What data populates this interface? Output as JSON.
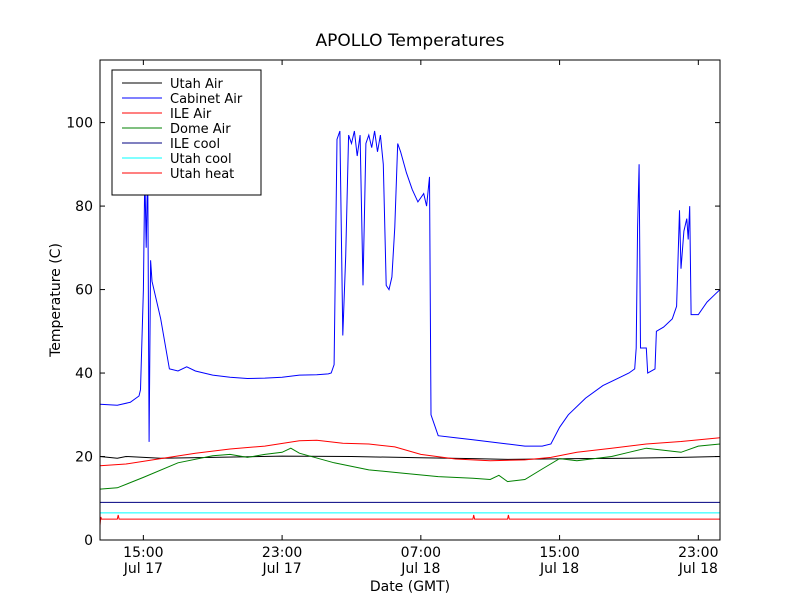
{
  "chart_data": {
    "type": "line",
    "title": "APOLLO Temperatures",
    "xlabel": "Date (GMT)",
    "ylabel": "Temperature (C)",
    "xlim": [
      "Jul 17 12:30",
      "Jul 19 00:15"
    ],
    "ylim": [
      0,
      115
    ],
    "yticks": [
      0,
      20,
      40,
      60,
      80,
      100
    ],
    "xticks": [
      {
        "t": "Jul 17 15:00",
        "line1": "15:00",
        "line2": "Jul 17"
      },
      {
        "t": "Jul 17 23:00",
        "line1": "23:00",
        "line2": "Jul 17"
      },
      {
        "t": "Jul 18 07:00",
        "line1": "07:00",
        "line2": "Jul 18"
      },
      {
        "t": "Jul 18 15:00",
        "line1": "15:00",
        "line2": "Jul 18"
      },
      {
        "t": "Jul 18 23:00",
        "line1": "23:00",
        "line2": "Jul 18"
      }
    ],
    "grid": false,
    "legend": "top-left",
    "series": [
      {
        "name": "Utah Air",
        "color": "#000000",
        "points": [
          [
            "Jul 17 12:30",
            20.0
          ],
          [
            "Jul 17 13:30",
            19.6
          ],
          [
            "Jul 17 14:00",
            20.0
          ],
          [
            "Jul 17 16:00",
            19.6
          ],
          [
            "Jul 17 19:00",
            19.8
          ],
          [
            "Jul 17 23:00",
            20.1
          ],
          [
            "Jul 18 03:00",
            20.0
          ],
          [
            "Jul 18 07:00",
            19.7
          ],
          [
            "Jul 18 10:00",
            19.5
          ],
          [
            "Jul 18 12:00",
            19.3
          ],
          [
            "Jul 18 14:00",
            19.4
          ],
          [
            "Jul 18 16:00",
            19.5
          ],
          [
            "Jul 18 19:00",
            19.6
          ],
          [
            "Jul 18 22:00",
            19.8
          ],
          [
            "Jul 19 00:15",
            20.0
          ]
        ]
      },
      {
        "name": "Cabinet Air",
        "color": "#0000ff",
        "points": [
          [
            "Jul 17 12:30",
            32.5
          ],
          [
            "Jul 17 13:30",
            32.3
          ],
          [
            "Jul 17 14:15",
            33.0
          ],
          [
            "Jul 17 14:45",
            34.5
          ],
          [
            "Jul 17 14:50",
            36
          ],
          [
            "Jul 17 15:00",
            60
          ],
          [
            "Jul 17 15:05",
            88
          ],
          [
            "Jul 17 15:10",
            70
          ],
          [
            "Jul 17 15:15",
            90
          ],
          [
            "Jul 17 15:20",
            23.5
          ],
          [
            "Jul 17 15:25",
            67
          ],
          [
            "Jul 17 15:30",
            62
          ],
          [
            "Jul 17 16:00",
            53
          ],
          [
            "Jul 17 16:30",
            41
          ],
          [
            "Jul 17 17:00",
            40.5
          ],
          [
            "Jul 17 17:30",
            41.5
          ],
          [
            "Jul 17 18:00",
            40.5
          ],
          [
            "Jul 17 19:00",
            39.5
          ],
          [
            "Jul 17 20:00",
            39.0
          ],
          [
            "Jul 17 21:00",
            38.7
          ],
          [
            "Jul 17 22:00",
            38.8
          ],
          [
            "Jul 17 23:00",
            39.0
          ],
          [
            "Jul 18 00:00",
            39.5
          ],
          [
            "Jul 18 01:00",
            39.6
          ],
          [
            "Jul 18 01:40",
            39.8
          ],
          [
            "Jul 18 01:50",
            40
          ],
          [
            "Jul 18 02:00",
            42
          ],
          [
            "Jul 18 02:10",
            96
          ],
          [
            "Jul 18 02:20",
            98
          ],
          [
            "Jul 18 02:30",
            49
          ],
          [
            "Jul 18 02:40",
            68
          ],
          [
            "Jul 18 02:50",
            97
          ],
          [
            "Jul 18 03:00",
            95
          ],
          [
            "Jul 18 03:10",
            98
          ],
          [
            "Jul 18 03:20",
            92
          ],
          [
            "Jul 18 03:30",
            97
          ],
          [
            "Jul 18 03:40",
            61
          ],
          [
            "Jul 18 03:50",
            95
          ],
          [
            "Jul 18 04:00",
            97
          ],
          [
            "Jul 18 04:10",
            94
          ],
          [
            "Jul 18 04:20",
            98
          ],
          [
            "Jul 18 04:30",
            93
          ],
          [
            "Jul 18 04:40",
            97
          ],
          [
            "Jul 18 04:50",
            90
          ],
          [
            "Jul 18 05:00",
            61
          ],
          [
            "Jul 18 05:10",
            60
          ],
          [
            "Jul 18 05:20",
            63
          ],
          [
            "Jul 18 05:30",
            75
          ],
          [
            "Jul 18 05:40",
            95
          ],
          [
            "Jul 18 05:50",
            93
          ],
          [
            "Jul 18 06:10",
            88
          ],
          [
            "Jul 18 06:30",
            84
          ],
          [
            "Jul 18 06:50",
            81
          ],
          [
            "Jul 18 07:10",
            83
          ],
          [
            "Jul 18 07:20",
            80
          ],
          [
            "Jul 18 07:30",
            87
          ],
          [
            "Jul 18 07:35",
            30
          ],
          [
            "Jul 18 08:00",
            25
          ],
          [
            "Jul 18 09:00",
            24.5
          ],
          [
            "Jul 18 10:00",
            24
          ],
          [
            "Jul 18 11:00",
            23.5
          ],
          [
            "Jul 18 12:00",
            23
          ],
          [
            "Jul 18 13:00",
            22.5
          ],
          [
            "Jul 18 14:00",
            22.5
          ],
          [
            "Jul 18 14:30",
            23
          ],
          [
            "Jul 18 15:00",
            27
          ],
          [
            "Jul 18 15:30",
            30
          ],
          [
            "Jul 18 16:30",
            34
          ],
          [
            "Jul 18 17:30",
            37
          ],
          [
            "Jul 18 18:30",
            39
          ],
          [
            "Jul 18 19:00",
            40
          ],
          [
            "Jul 18 19:20",
            41
          ],
          [
            "Jul 18 19:25",
            46
          ],
          [
            "Jul 18 19:30",
            75
          ],
          [
            "Jul 18 19:35",
            90
          ],
          [
            "Jul 18 19:40",
            46
          ],
          [
            "Jul 18 20:00",
            46
          ],
          [
            "Jul 18 20:05",
            40
          ],
          [
            "Jul 18 20:30",
            41
          ],
          [
            "Jul 18 20:35",
            50
          ],
          [
            "Jul 18 21:00",
            51
          ],
          [
            "Jul 18 21:30",
            53
          ],
          [
            "Jul 18 21:45",
            56
          ],
          [
            "Jul 18 21:55",
            79
          ],
          [
            "Jul 18 22:00",
            65
          ],
          [
            "Jul 18 22:10",
            74
          ],
          [
            "Jul 18 22:20",
            77
          ],
          [
            "Jul 18 22:25",
            72
          ],
          [
            "Jul 18 22:30",
            80
          ],
          [
            "Jul 18 22:35",
            54
          ],
          [
            "Jul 18 23:00",
            54
          ],
          [
            "Jul 18 23:30",
            57
          ],
          [
            "Jul 19 00:00",
            59
          ],
          [
            "Jul 19 00:15",
            60
          ]
        ]
      },
      {
        "name": "ILE Air",
        "color": "#ff0000",
        "points": [
          [
            "Jul 17 12:30",
            17.8
          ],
          [
            "Jul 17 14:00",
            18.2
          ],
          [
            "Jul 17 16:00",
            19.5
          ],
          [
            "Jul 17 18:00",
            20.8
          ],
          [
            "Jul 17 20:00",
            21.8
          ],
          [
            "Jul 17 22:00",
            22.5
          ],
          [
            "Jul 18 00:00",
            23.8
          ],
          [
            "Jul 18 01:00",
            23.9
          ],
          [
            "Jul 18 02:30",
            23.2
          ],
          [
            "Jul 18 04:00",
            23.0
          ],
          [
            "Jul 18 05:30",
            22.3
          ],
          [
            "Jul 18 07:00",
            20.5
          ],
          [
            "Jul 18 09:00",
            19.4
          ],
          [
            "Jul 18 11:00",
            19.0
          ],
          [
            "Jul 18 13:00",
            19.2
          ],
          [
            "Jul 18 14:30",
            19.8
          ],
          [
            "Jul 18 16:00",
            21.0
          ],
          [
            "Jul 18 18:00",
            22.0
          ],
          [
            "Jul 18 20:00",
            23.0
          ],
          [
            "Jul 18 22:00",
            23.6
          ],
          [
            "Jul 19 00:15",
            24.5
          ]
        ]
      },
      {
        "name": "Dome Air",
        "color": "#008000",
        "points": [
          [
            "Jul 17 12:30",
            12.2
          ],
          [
            "Jul 17 13:30",
            12.5
          ],
          [
            "Jul 17 15:00",
            15.0
          ],
          [
            "Jul 17 17:00",
            18.5
          ],
          [
            "Jul 17 19:00",
            20.2
          ],
          [
            "Jul 17 20:00",
            20.5
          ],
          [
            "Jul 17 21:00",
            19.8
          ],
          [
            "Jul 17 22:00",
            20.5
          ],
          [
            "Jul 17 23:00",
            21.0
          ],
          [
            "Jul 17 23:30",
            22.0
          ],
          [
            "Jul 18 00:00",
            20.8
          ],
          [
            "Jul 18 02:00",
            18.5
          ],
          [
            "Jul 18 04:00",
            16.8
          ],
          [
            "Jul 18 06:00",
            16.0
          ],
          [
            "Jul 18 08:00",
            15.2
          ],
          [
            "Jul 18 10:00",
            14.8
          ],
          [
            "Jul 18 11:00",
            14.5
          ],
          [
            "Jul 18 11:30",
            15.5
          ],
          [
            "Jul 18 12:00",
            14.0
          ],
          [
            "Jul 18 13:00",
            14.5
          ],
          [
            "Jul 18 14:00",
            17.0
          ],
          [
            "Jul 18 15:00",
            19.5
          ],
          [
            "Jul 18 16:00",
            19.0
          ],
          [
            "Jul 18 18:00",
            20.0
          ],
          [
            "Jul 18 19:00",
            21.0
          ],
          [
            "Jul 18 20:00",
            22.0
          ],
          [
            "Jul 18 21:00",
            21.5
          ],
          [
            "Jul 18 22:00",
            21.0
          ],
          [
            "Jul 18 23:00",
            22.5
          ],
          [
            "Jul 19 00:15",
            23.0
          ]
        ]
      },
      {
        "name": "ILE cool",
        "color": "#000080",
        "points": [
          [
            "Jul 17 12:30",
            9.0
          ],
          [
            "Jul 19 00:15",
            9.0
          ]
        ]
      },
      {
        "name": "Utah cool",
        "color": "#00ffff",
        "points": [
          [
            "Jul 17 12:30",
            6.5
          ],
          [
            "Jul 19 00:15",
            6.5
          ]
        ]
      },
      {
        "name": "Utah heat",
        "color": "#ff0000",
        "points": [
          [
            "Jul 17 12:30",
            3.5
          ],
          [
            "Jul 17 12:32",
            5.2
          ],
          [
            "Jul 17 12:33",
            5.5
          ],
          [
            "Jul 17 12:35",
            5.0
          ],
          [
            "Jul 17 13:30",
            5.0
          ],
          [
            "Jul 17 13:33",
            6.0
          ],
          [
            "Jul 17 13:36",
            5.0
          ],
          [
            "Jul 18 10:00",
            5.0
          ],
          [
            "Jul 18 10:03",
            6.0
          ],
          [
            "Jul 18 10:06",
            5.0
          ],
          [
            "Jul 18 12:00",
            5.0
          ],
          [
            "Jul 18 12:03",
            6.0
          ],
          [
            "Jul 18 12:06",
            5.0
          ],
          [
            "Jul 19 00:15",
            5.0
          ]
        ]
      }
    ]
  }
}
